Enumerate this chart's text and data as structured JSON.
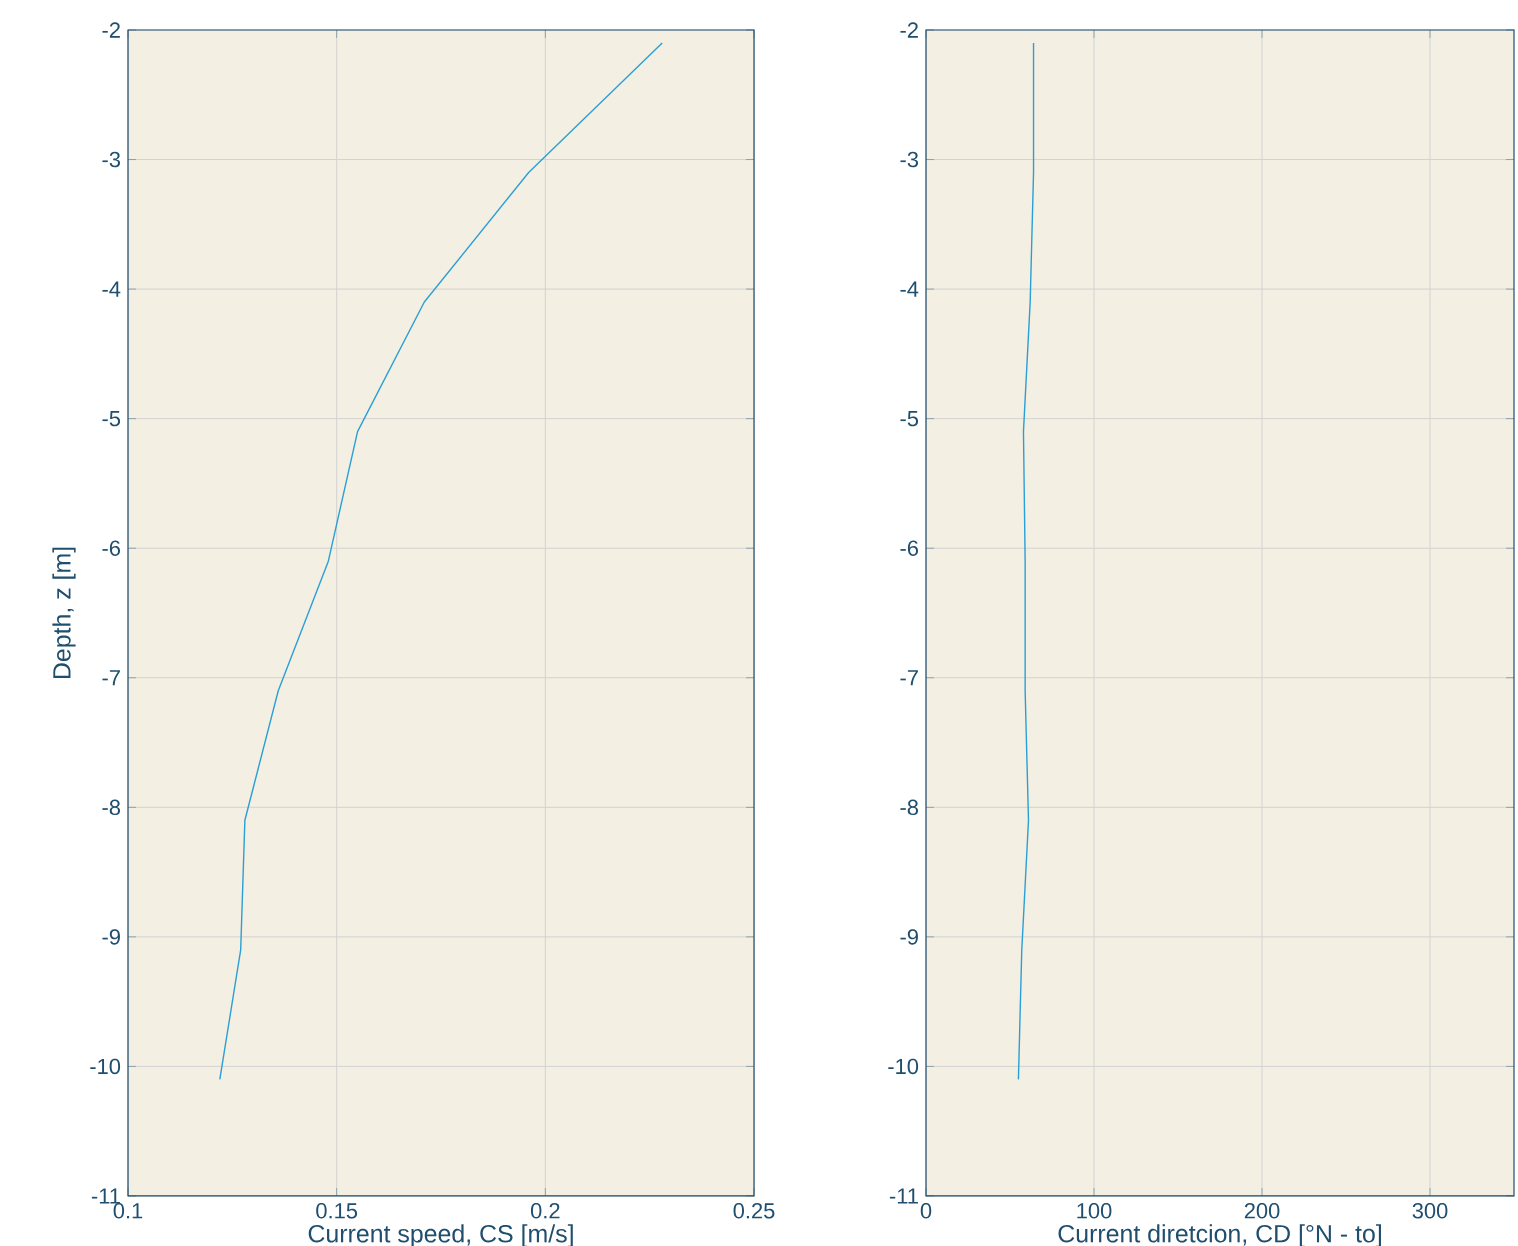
{
  "chart_data": [
    {
      "type": "line",
      "xlabel": "Current speed, CS [m/s]",
      "ylabel": "Depth, z [m]",
      "grid": true,
      "xlim": [
        0.1,
        0.25
      ],
      "ylim": [
        -11,
        -2
      ],
      "xticks": [
        0.1,
        0.15,
        0.2,
        0.25
      ],
      "yticks": [
        -11,
        -10,
        -9,
        -8,
        -7,
        -6,
        -5,
        -4,
        -3,
        -2
      ],
      "series": [
        {
          "color": "#2a9fd6",
          "x": [
            0.228,
            0.196,
            0.171,
            0.155,
            0.148,
            0.136,
            0.128,
            0.127,
            0.122
          ],
          "values": [
            -2.1,
            -3.1,
            -4.1,
            -5.1,
            -6.1,
            -7.1,
            -8.1,
            -9.1,
            -10.1
          ]
        }
      ]
    },
    {
      "type": "line",
      "xlabel": "Current diretcion, CD [°N - to]",
      "grid": true,
      "xlim": [
        0,
        350
      ],
      "ylim": [
        -11,
        -2
      ],
      "xticks": [
        0,
        100,
        200,
        300
      ],
      "yticks": [
        -11,
        -10,
        -9,
        -8,
        -7,
        -6,
        -5,
        -4,
        -3,
        -2
      ],
      "series": [
        {
          "color": "#2a9fd6",
          "x": [
            64,
            64,
            62,
            58,
            59,
            59,
            61,
            57,
            55
          ],
          "values": [
            -2.1,
            -3.1,
            -4.1,
            -5.1,
            -6.1,
            -7.1,
            -8.1,
            -9.1,
            -10.1
          ]
        }
      ]
    }
  ]
}
